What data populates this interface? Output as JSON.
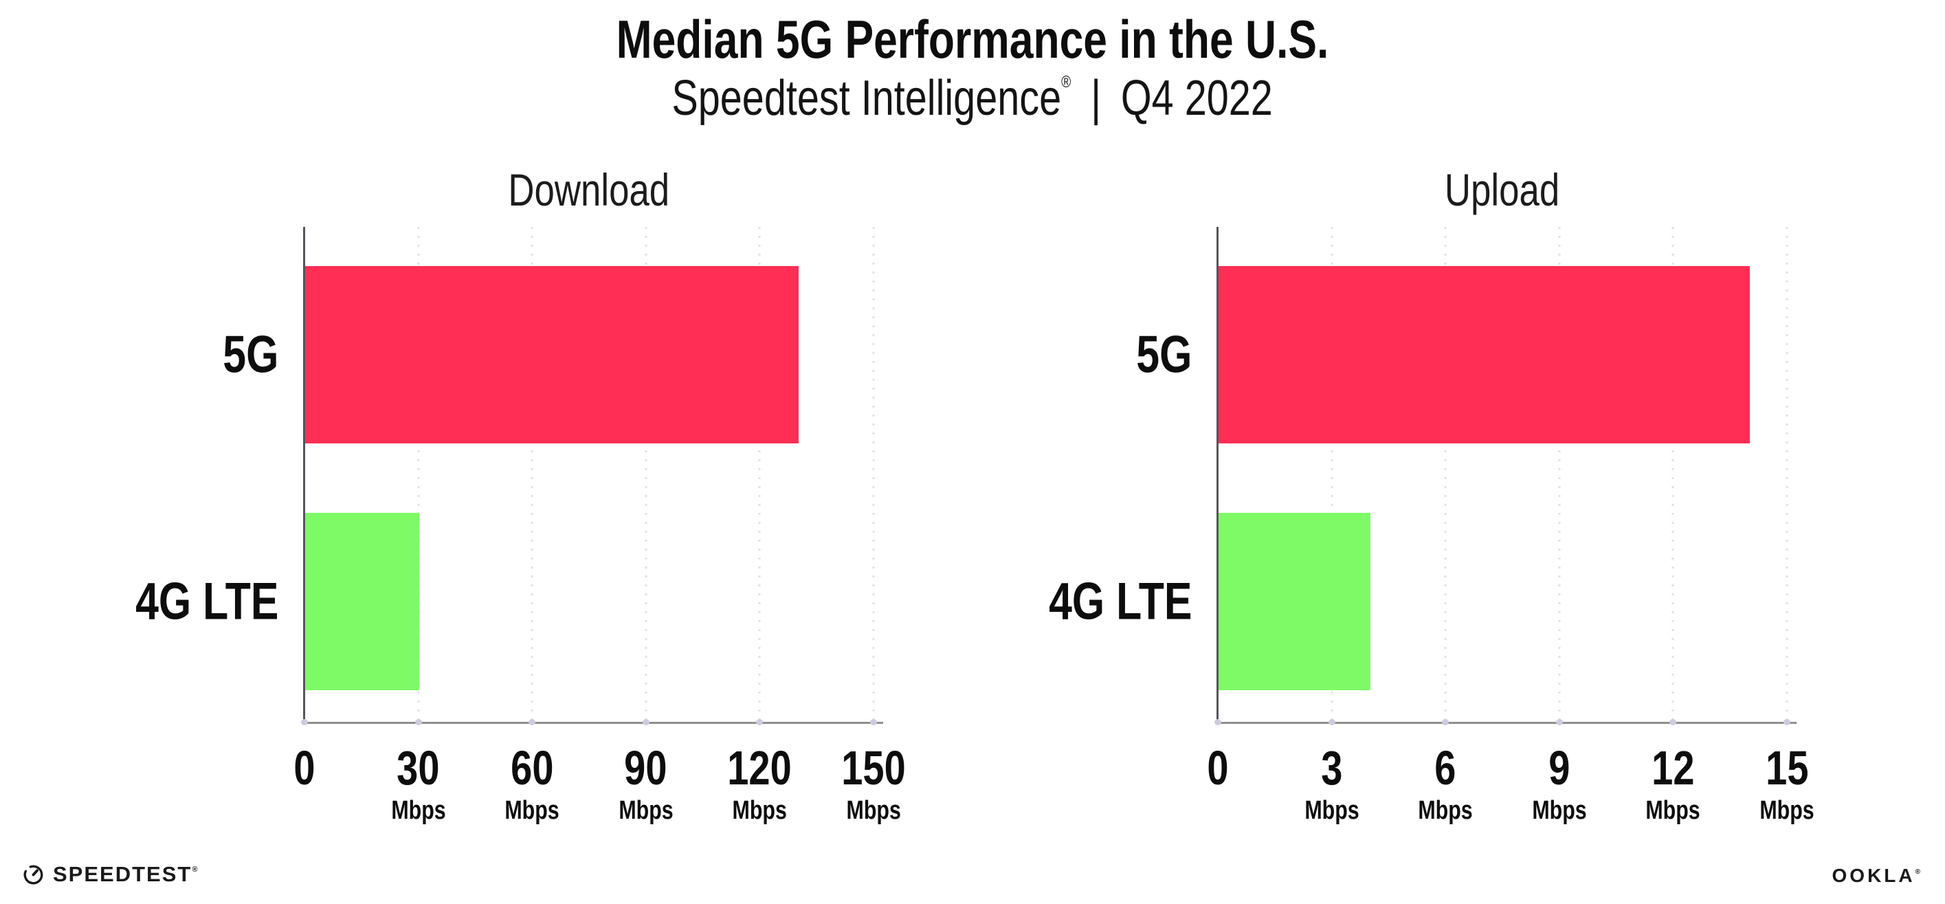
{
  "header": {
    "title": "Median 5G Performance in the U.S.",
    "subtitle_brand": "Speedtest Intelligence",
    "subtitle_reg": "®",
    "subtitle_separator": "|",
    "subtitle_period": "Q4 2022"
  },
  "chart_data": [
    {
      "type": "bar",
      "orientation": "horizontal",
      "title": "Download",
      "categories": [
        "5G",
        "4G LTE"
      ],
      "values": [
        130,
        30
      ],
      "unit": "Mbps",
      "xlim": [
        0,
        150
      ],
      "xticks": [
        0,
        30,
        60,
        90,
        120,
        150
      ],
      "tick_unit": "Mbps",
      "bar_colors": [
        "#ff2e55",
        "#7dfa66"
      ],
      "grid": "vertical-dotted",
      "legend": "none"
    },
    {
      "type": "bar",
      "orientation": "horizontal",
      "title": "Upload",
      "categories": [
        "5G",
        "4G LTE"
      ],
      "values": [
        14,
        4
      ],
      "unit": "Mbps",
      "xlim": [
        0,
        15
      ],
      "xticks": [
        0,
        3,
        6,
        9,
        12,
        15
      ],
      "tick_unit": "Mbps",
      "bar_colors": [
        "#ff2e55",
        "#7dfa66"
      ],
      "grid": "vertical-dotted",
      "legend": "none"
    }
  ],
  "footer": {
    "speedtest_logo_text": "SPEEDTEST",
    "speedtest_reg": "®",
    "ookla_logo_text": "OOKLA",
    "ookla_reg": "®"
  },
  "colors": {
    "bar_5g": "#ff2e55",
    "bar_4g_lte": "#7dfa66",
    "x_axis_line": "#8f8f8f",
    "y_axis_line": "#55555c",
    "gridline": "#e2e2ec",
    "text": "#0d0d0d"
  }
}
